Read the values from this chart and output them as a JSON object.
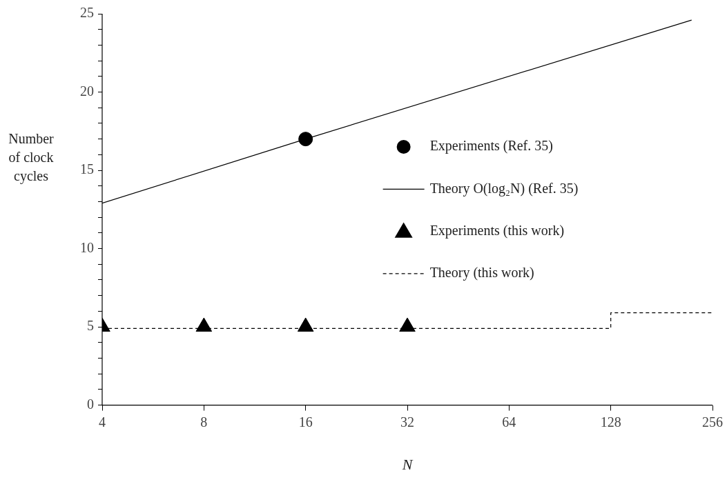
{
  "chart_data": {
    "type": "scatter",
    "xlabel": "N",
    "ylabel": "Number of clock cycles",
    "log": "x",
    "xlim": [
      4,
      256
    ],
    "xticks": [
      4,
      8,
      16,
      32,
      64,
      128,
      256
    ],
    "ylim": [
      0,
      25
    ],
    "yticks": [
      0,
      {
        "value": 1,
        "label": null
      },
      {
        "value": 2,
        "label": null
      },
      {
        "value": 3,
        "label": null
      },
      {
        "value": 4,
        "label": null
      },
      5,
      {
        "value": 6,
        "label": null
      },
      {
        "value": 7,
        "label": null
      },
      {
        "value": 8,
        "label": null
      },
      {
        "value": 9,
        "label": null
      },
      10,
      {
        "value": 11,
        "label": null
      },
      {
        "value": 12,
        "label": null
      },
      {
        "value": 13,
        "label": null
      },
      {
        "value": 14,
        "label": null
      },
      15,
      {
        "value": 16,
        "label": null
      },
      {
        "value": 17,
        "label": null
      },
      {
        "value": 18,
        "label": null
      },
      {
        "value": 19,
        "label": null
      },
      20,
      {
        "value": 21,
        "label": null
      },
      {
        "value": 22,
        "label": null
      },
      {
        "value": 23,
        "label": null
      },
      {
        "value": 24,
        "label": null
      },
      25
    ],
    "grid": false,
    "legend": "right",
    "series": [
      {
        "name": "Experiments (Ref. 35)",
        "marker": "circle",
        "color": "#000000",
        "x": [
          16
        ],
        "values": [
          17
        ]
      },
      {
        "name": "Theory O(log₂N) (Ref. 35)",
        "type": "line",
        "marker": "none",
        "line_style": "solid",
        "color": "#000000",
        "x": [
          4,
          16,
          222
        ],
        "values": [
          12.9,
          17,
          24.6
        ]
      },
      {
        "name": "Experiments (this work)",
        "marker": "triangle",
        "color": "#000000",
        "x": [
          4,
          8,
          16,
          32
        ],
        "values": [
          5,
          5,
          5,
          5
        ]
      },
      {
        "name": "Theory (this work)",
        "type": "step",
        "marker": "none",
        "line_style": "dashed",
        "color": "#000000",
        "x": [
          4,
          128,
          256
        ],
        "values": [
          4.9,
          5.9,
          5.9
        ]
      }
    ]
  }
}
